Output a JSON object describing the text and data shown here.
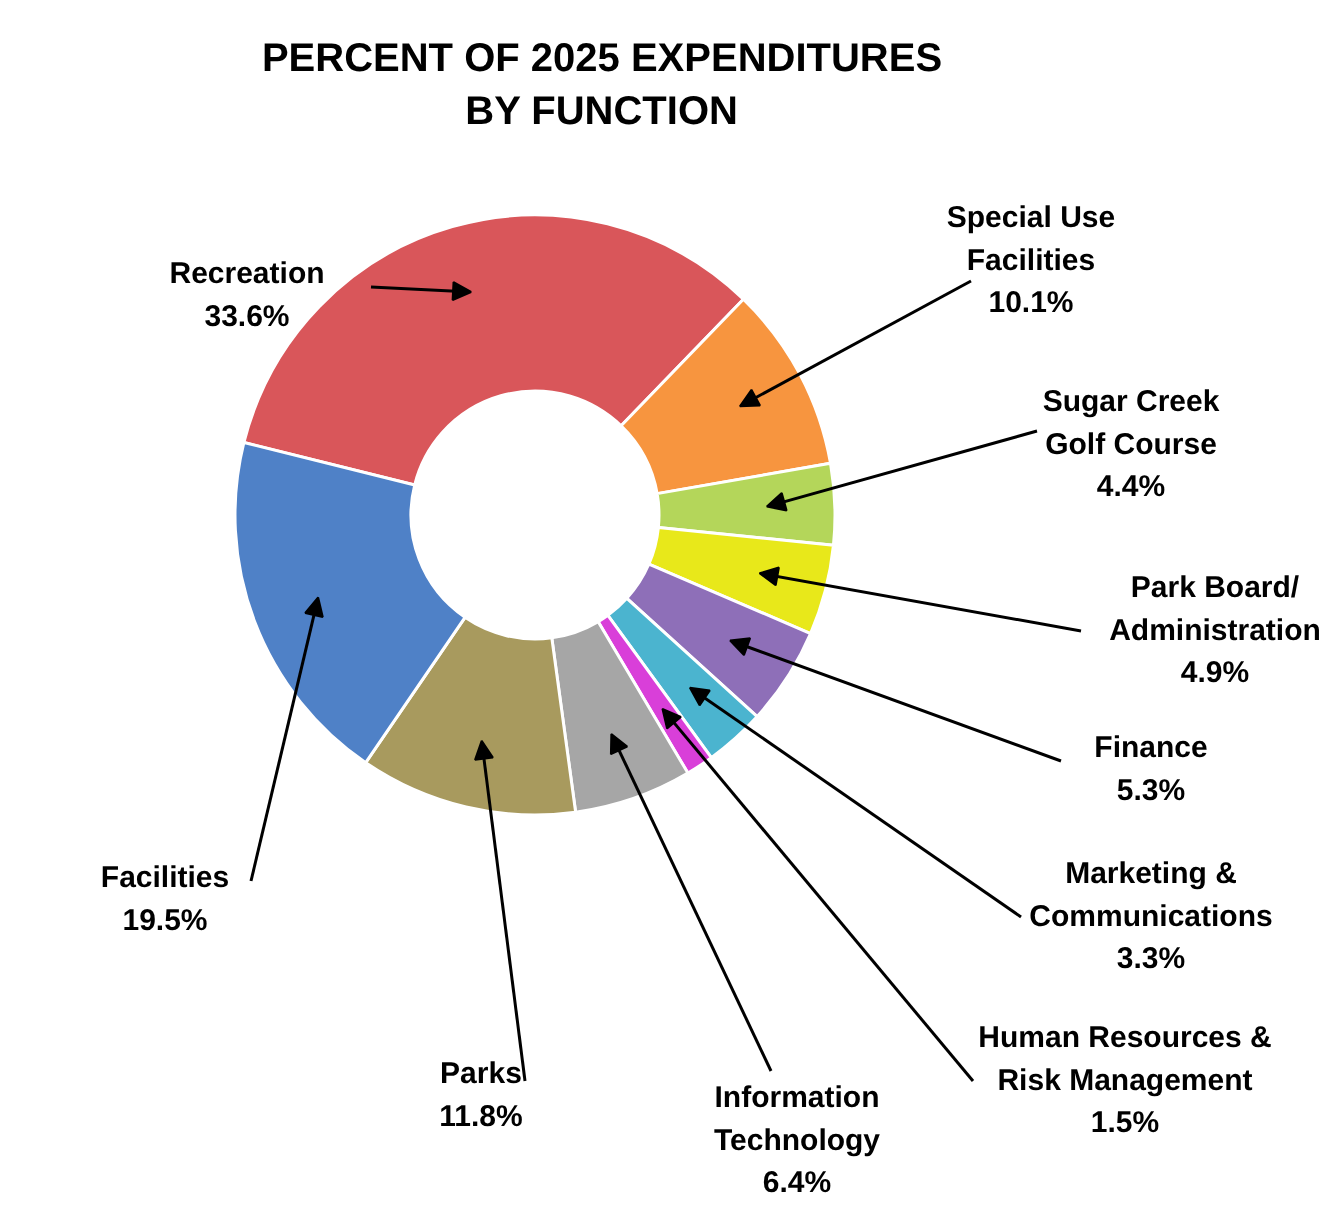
{
  "chart_data": {
    "type": "donut",
    "title": "PERCENT OF 2025 EXPENDITURES\nBY FUNCTION",
    "categories": [
      "Recreation",
      "Special Use\nFacilities",
      "Sugar Creek\nGolf Course",
      "Park Board/\nAdministration",
      "Finance",
      "Marketing &\nCommunications",
      "Human Resources &\nRisk Management",
      "Information\nTechnology",
      "Parks",
      "Facilities"
    ],
    "values": [
      33.6,
      10.1,
      4.4,
      4.9,
      5.3,
      3.3,
      1.5,
      6.4,
      11.8,
      19.5
    ],
    "value_labels": [
      "33.6%",
      "10.1%",
      "4.4%",
      "4.9%",
      "5.3%",
      "3.3%",
      "1.5%",
      "6.4%",
      "11.8%",
      "19.5%"
    ],
    "colors": [
      "#d9565a",
      "#f7953f",
      "#b4d65a",
      "#e8e81a",
      "#8e6fb8",
      "#4bb4cf",
      "#d93fd9",
      "#a6a6a6",
      "#a89a5e",
      "#4f81c7"
    ]
  }
}
